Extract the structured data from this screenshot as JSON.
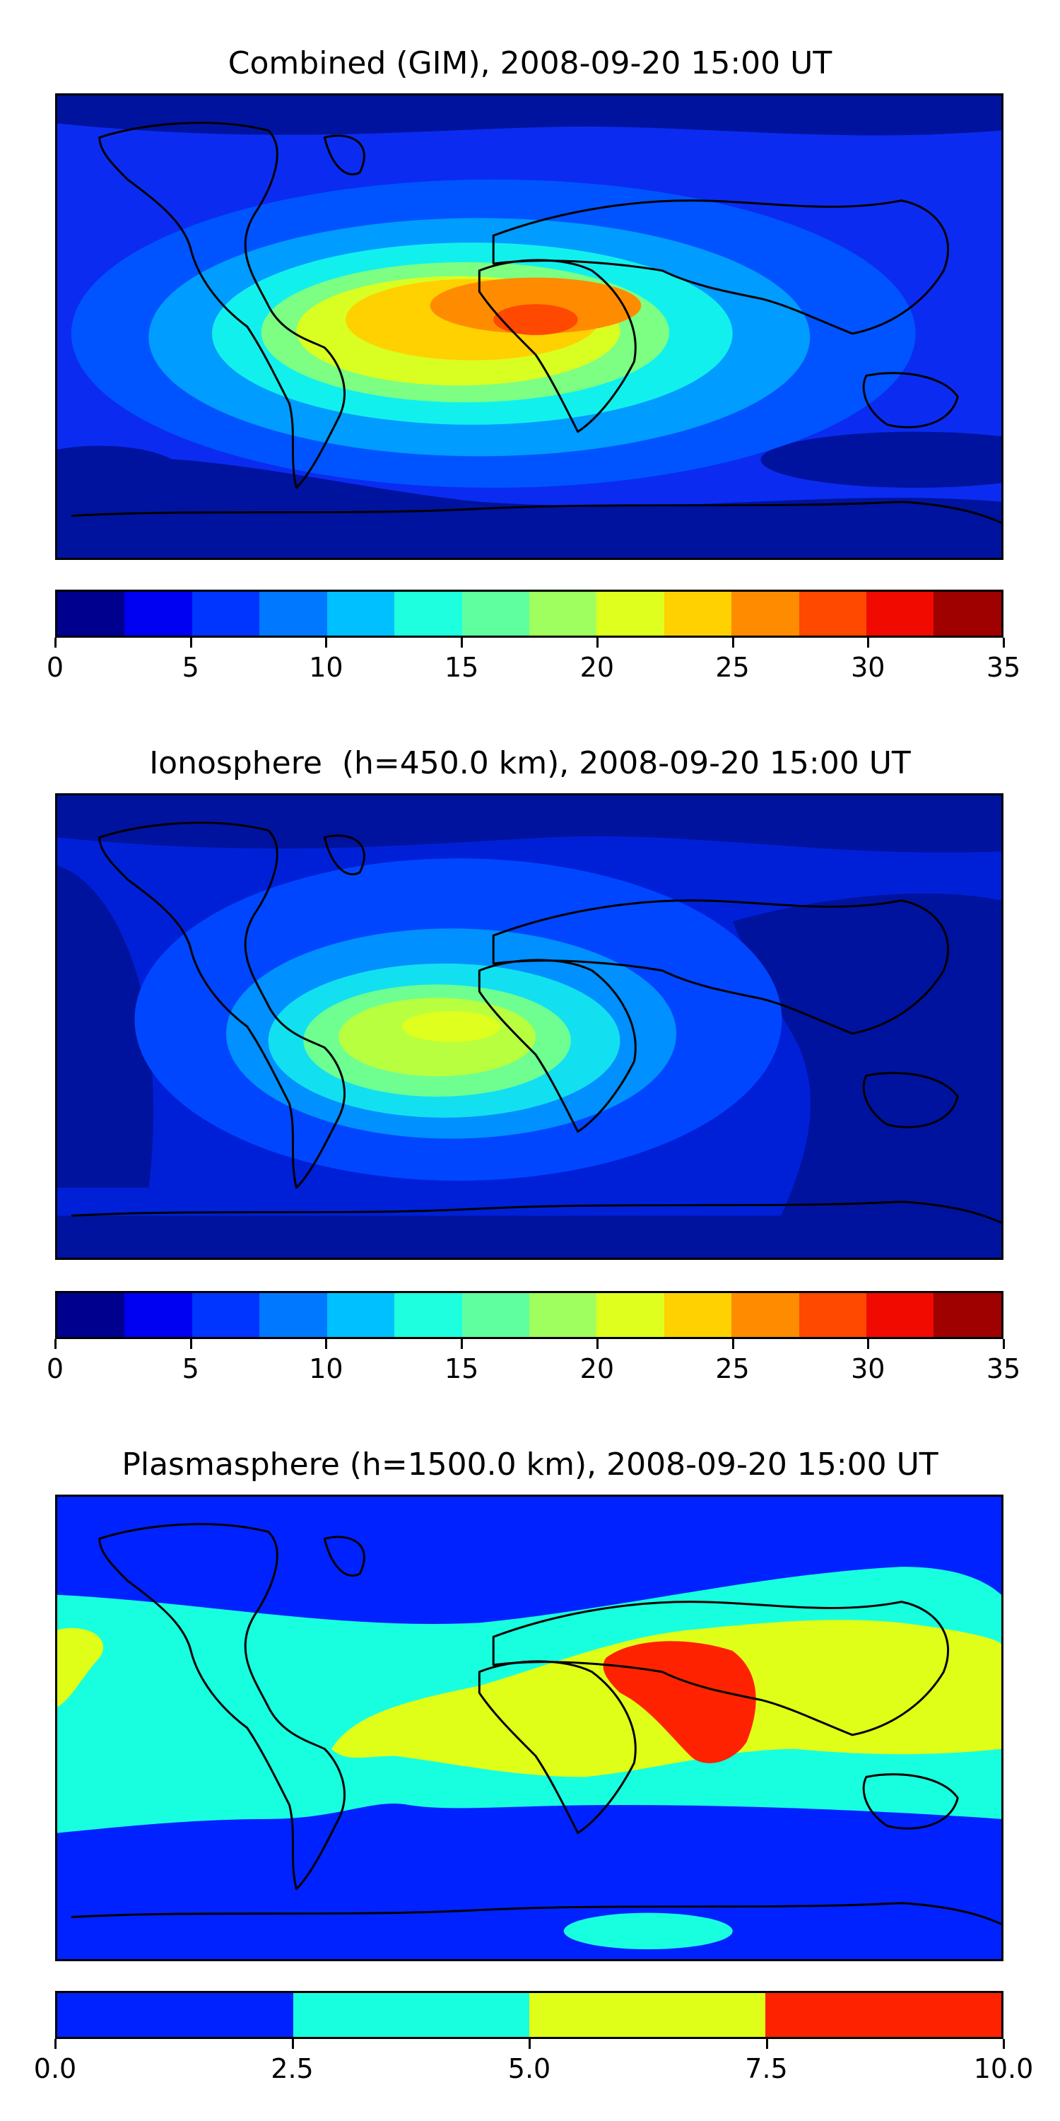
{
  "panels": [
    {
      "title": "Combined (GIM), 2008-09-20 15:00 UT",
      "colorbar": {
        "colors": [
          "#00008f",
          "#0000f2",
          "#0034ff",
          "#0078ff",
          "#00c0ff",
          "#1effdf",
          "#5fff9f",
          "#9fff5f",
          "#dfff1e",
          "#ffd100",
          "#ff8c00",
          "#ff4800",
          "#f00a00",
          "#9f0000"
        ],
        "ticks": [
          "0",
          "5",
          "10",
          "15",
          "20",
          "25",
          "30",
          "35"
        ],
        "range": [
          0,
          35
        ]
      },
      "field_colors": {
        "background": "#0b2cf0",
        "dark": "#00139e",
        "c1": "#0054ff",
        "c2": "#009cff",
        "c3": "#12f0ee",
        "c4": "#7cff82",
        "c5": "#d9ff22",
        "c6": "#ffd100",
        "c7": "#ff8c00",
        "c8": "#ff4800"
      }
    },
    {
      "title": "Ionosphere  (h=450.0 km), 2008-09-20 15:00 UT",
      "colorbar": {
        "colors": [
          "#00008f",
          "#0000f2",
          "#0034ff",
          "#0078ff",
          "#00c0ff",
          "#1effdf",
          "#5fff9f",
          "#9fff5f",
          "#dfff1e",
          "#ffd100",
          "#ff8c00",
          "#ff4800",
          "#f00a00",
          "#9f0000"
        ],
        "ticks": [
          "0",
          "5",
          "10",
          "15",
          "20",
          "25",
          "30",
          "35"
        ],
        "range": [
          0,
          35
        ]
      },
      "field_colors": {
        "background": "#0020d8",
        "dark": "#00139e",
        "c1": "#0046ff",
        "c2": "#0090ff",
        "c3": "#12e0f0",
        "c4": "#6eff90",
        "c5": "#b8ff40",
        "c6": "#dfff1e"
      }
    },
    {
      "title": "Plasmasphere (h=1500.0 km), 2008-09-20 15:00 UT",
      "colorbar": {
        "colors": [
          "#0022ff",
          "#18ffe0",
          "#e0ff18",
          "#ff2200"
        ],
        "ticks": [
          "0.0",
          "2.5",
          "5.0",
          "7.5",
          "10.0"
        ],
        "range": [
          0,
          10
        ]
      },
      "field_colors": {
        "background": "#0022ff",
        "c1": "#18ffe0",
        "c2": "#e0ff18",
        "c3": "#ff2200"
      }
    }
  ]
}
